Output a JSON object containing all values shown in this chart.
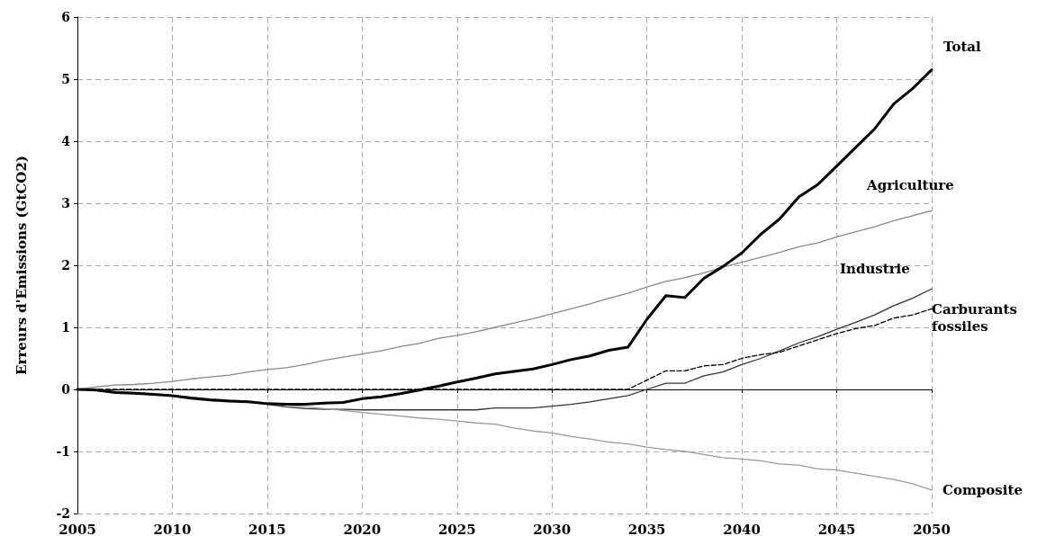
{
  "chart_data": {
    "type": "line",
    "ylabel": "Erreurs d'Emissions (GtCO2)",
    "x": [
      2005,
      2006,
      2007,
      2008,
      2009,
      2010,
      2011,
      2012,
      2013,
      2014,
      2015,
      2016,
      2017,
      2018,
      2019,
      2020,
      2021,
      2022,
      2023,
      2024,
      2025,
      2026,
      2027,
      2028,
      2029,
      2030,
      2031,
      2032,
      2033,
      2034,
      2035,
      2036,
      2037,
      2038,
      2039,
      2040,
      2041,
      2042,
      2043,
      2044,
      2045,
      2046,
      2047,
      2048,
      2049,
      2050
    ],
    "xlim": [
      2005,
      2050
    ],
    "xticks": [
      2005,
      2010,
      2015,
      2020,
      2025,
      2030,
      2035,
      2040,
      2045,
      2050
    ],
    "ylim": [
      -2,
      6
    ],
    "yticks": [
      -2,
      -1,
      0,
      1,
      2,
      3,
      4,
      5,
      6
    ],
    "grid": true,
    "marker": "none",
    "series": [
      {
        "name": "Total",
        "color": "#000000",
        "line_style": "solid",
        "values": [
          0,
          -0.01,
          -0.05,
          -0.06,
          -0.08,
          -0.1,
          -0.14,
          -0.17,
          -0.19,
          -0.2,
          -0.23,
          -0.24,
          -0.24,
          -0.22,
          -0.21,
          -0.15,
          -0.12,
          -0.07,
          -0.01,
          0.05,
          0.12,
          0.18,
          0.25,
          0.29,
          0.33,
          0.4,
          0.48,
          0.54,
          0.63,
          0.68,
          1.13,
          1.51,
          1.48,
          1.79,
          1.98,
          2.2,
          2.5,
          2.75,
          3.1,
          3.3,
          3.6,
          3.9,
          4.2,
          4.6,
          4.85,
          5.15
        ]
      },
      {
        "name": "Agriculture",
        "color": "#888888",
        "line_style": "solid",
        "values": [
          0,
          0.04,
          0.07,
          0.08,
          0.1,
          0.13,
          0.17,
          0.2,
          0.23,
          0.28,
          0.32,
          0.35,
          0.4,
          0.47,
          0.52,
          0.57,
          0.62,
          0.69,
          0.74,
          0.82,
          0.87,
          0.93,
          1.0,
          1.07,
          1.14,
          1.22,
          1.3,
          1.38,
          1.47,
          1.55,
          1.65,
          1.74,
          1.8,
          1.88,
          1.97,
          2.05,
          2.13,
          2.21,
          2.3,
          2.36,
          2.46,
          2.54,
          2.62,
          2.72,
          2.8,
          2.88
        ]
      },
      {
        "name": "Industrie",
        "color": "#333333",
        "line_style": "solid",
        "values": [
          0,
          -0.01,
          -0.04,
          -0.06,
          -0.08,
          -0.1,
          -0.13,
          -0.16,
          -0.18,
          -0.2,
          -0.24,
          -0.28,
          -0.31,
          -0.32,
          -0.32,
          -0.33,
          -0.33,
          -0.33,
          -0.33,
          -0.33,
          -0.33,
          -0.33,
          -0.3,
          -0.3,
          -0.3,
          -0.27,
          -0.24,
          -0.2,
          -0.15,
          -0.1,
          0,
          0.1,
          0.1,
          0.22,
          0.28,
          0.4,
          0.5,
          0.62,
          0.75,
          0.85,
          0.97,
          1.08,
          1.2,
          1.35,
          1.47,
          1.62
        ]
      },
      {
        "name": "Carburants fossiles",
        "color": "#000000",
        "line_style": "dashed",
        "values": [
          0,
          0,
          0,
          0,
          0,
          0,
          0,
          0,
          0,
          0,
          0,
          0,
          0,
          0,
          0,
          0,
          0,
          0,
          0,
          0,
          0,
          0,
          0,
          0,
          0,
          0,
          0,
          0,
          0,
          0,
          0.15,
          0.3,
          0.3,
          0.38,
          0.4,
          0.5,
          0.56,
          0.6,
          0.7,
          0.8,
          0.9,
          0.98,
          1.03,
          1.15,
          1.2,
          1.3
        ]
      },
      {
        "name": "Composite",
        "color": "#999999",
        "line_style": "solid",
        "values": [
          0,
          -0.01,
          -0.03,
          -0.05,
          -0.07,
          -0.1,
          -0.12,
          -0.15,
          -0.17,
          -0.19,
          -0.22,
          -0.25,
          -0.28,
          -0.31,
          -0.34,
          -0.37,
          -0.4,
          -0.43,
          -0.46,
          -0.48,
          -0.51,
          -0.54,
          -0.56,
          -0.62,
          -0.67,
          -0.7,
          -0.76,
          -0.8,
          -0.85,
          -0.88,
          -0.93,
          -0.97,
          -1.0,
          -1.05,
          -1.1,
          -1.12,
          -1.15,
          -1.2,
          -1.22,
          -1.28,
          -1.3,
          -1.35,
          -1.4,
          -1.45,
          -1.52,
          -1.62
        ]
      }
    ]
  }
}
